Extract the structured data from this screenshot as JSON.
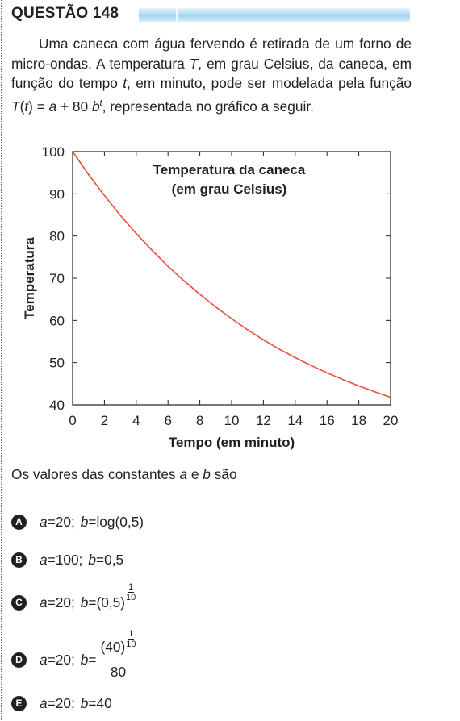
{
  "header": {
    "title": "QUESTÃO 148"
  },
  "statement": {
    "line1": "Uma caneca com água fervendo é retirada de um",
    "line2a": "forno de micro-ondas. A temperatura ",
    "line2_var": "T",
    "line2b": ", em grau Celsius,",
    "line3a": "da caneca, em função do tempo ",
    "line3_var": "t",
    "line3b": ", em minuto, pode ser",
    "line4a": "modelada pela função ",
    "func_T": "T",
    "func_arg": "t",
    "func_eq": " = ",
    "func_a": "a",
    "func_plus": " + 80 ",
    "func_b": "b",
    "func_exp": "t",
    "line4b": ", representada no",
    "line5": "gráfico a seguir."
  },
  "chart_data": {
    "type": "line",
    "title": "Temperatura da caneca",
    "subtitle": "(em grau Celsius)",
    "xlabel": "Tempo (em minuto)",
    "ylabel": "Temperatura",
    "xlim": [
      0,
      20
    ],
    "ylim": [
      40,
      100
    ],
    "xticks": [
      0,
      2,
      4,
      6,
      8,
      10,
      12,
      14,
      16,
      18,
      20
    ],
    "yticks": [
      40,
      50,
      60,
      70,
      80,
      90,
      100
    ],
    "grid": false,
    "line_color": "#e8503a",
    "series": [
      {
        "x": [
          0,
          1,
          2,
          3,
          4,
          5,
          6,
          7,
          8,
          9,
          10,
          11,
          12,
          13,
          14,
          15,
          16,
          17,
          18,
          19,
          20
        ],
        "y": [
          100,
          94.6,
          89.6,
          84.9,
          80.6,
          76.6,
          72.8,
          69.4,
          66.2,
          63.2,
          60.4,
          57.8,
          55.4,
          53.2,
          51.2,
          49.3,
          47.6,
          46.0,
          44.5,
          43.1,
          41.8
        ]
      }
    ]
  },
  "prompt": {
    "text_a": "Os valores das constantes ",
    "var_a": "a",
    "text_e": " e ",
    "var_b": "b",
    "text_end": " são"
  },
  "options": {
    "A": {
      "letter": "A",
      "a_val": "20;",
      "b_val": "log(0,5)"
    },
    "B": {
      "letter": "B",
      "a_val": "100;",
      "b_val": "0,5"
    },
    "C": {
      "letter": "C",
      "a_val": "20;",
      "b_base": "(0,5)",
      "exp_num": "1",
      "exp_den": "10"
    },
    "D": {
      "letter": "D",
      "a_val": "20;",
      "num_base": "(40)",
      "exp_num": "1",
      "exp_den": "10",
      "den": "80"
    },
    "E": {
      "letter": "E",
      "a_val": "20;",
      "b_val": "40"
    },
    "sym": {
      "a": "a",
      "b": "b",
      "eq": " = "
    }
  }
}
